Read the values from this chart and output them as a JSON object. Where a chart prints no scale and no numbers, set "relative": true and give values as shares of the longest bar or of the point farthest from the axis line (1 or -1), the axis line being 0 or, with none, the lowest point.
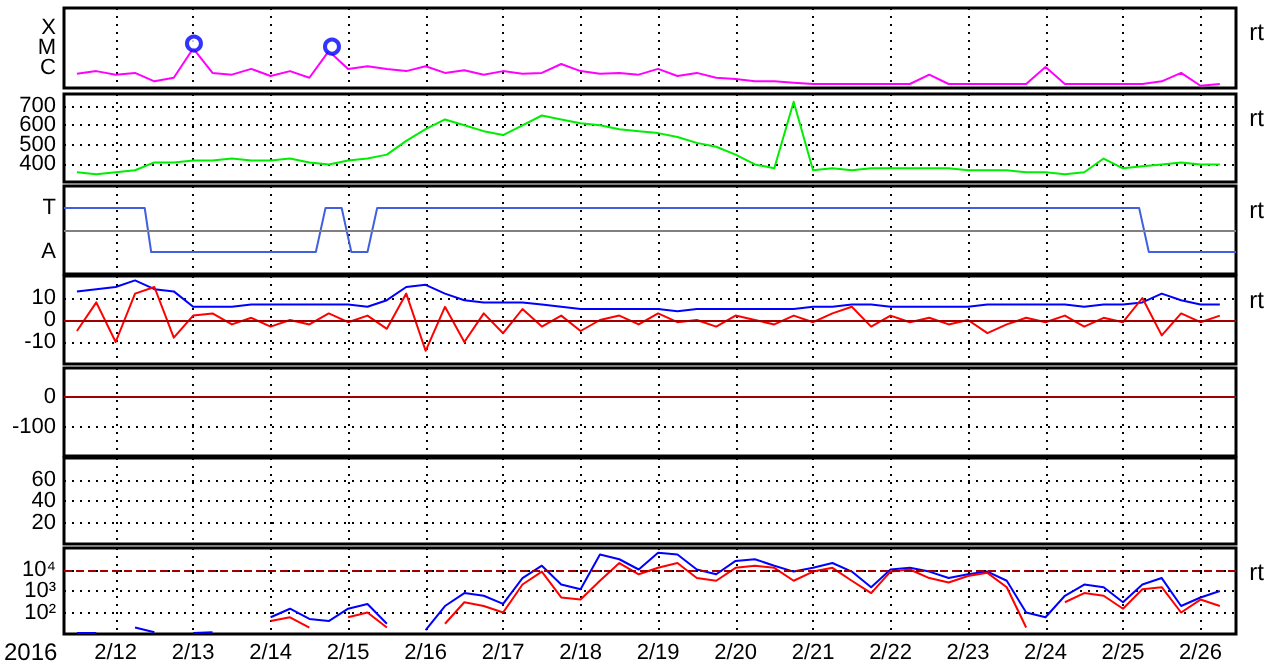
{
  "chart_data": [
    {
      "type": "line",
      "relative": true,
      "xlim": [
        "2016-02-11T08:00",
        "2016-02-26T11:00"
      ],
      "grid": "x",
      "tick_labels": false,
      "marker": "none",
      "annotations": [
        "X",
        "M",
        "C",
        "rt"
      ],
      "xticks": [
        {
          "value": "2016-02-12",
          "label": null
        },
        {
          "value": "2016-02-13",
          "label": null
        },
        {
          "value": "2016-02-14",
          "label": null
        },
        {
          "value": "2016-02-15",
          "label": null
        },
        {
          "value": "2016-02-16",
          "label": null
        },
        {
          "value": "2016-02-17",
          "label": null
        },
        {
          "value": "2016-02-18",
          "label": null
        },
        {
          "value": "2016-02-19",
          "label": null
        },
        {
          "value": "2016-02-20",
          "label": null
        },
        {
          "value": "2016-02-21",
          "label": null
        },
        {
          "value": "2016-02-22",
          "label": null
        },
        {
          "value": "2016-02-23",
          "label": null
        },
        {
          "value": "2016-02-24",
          "label": null
        },
        {
          "value": "2016-02-25",
          "label": null
        },
        {
          "value": "2016-02-26",
          "label": null
        }
      ],
      "x": [
        "2016-02-11T12:00",
        "2016-02-11T18:00",
        "2016-02-12T00:00",
        "2016-02-12T06:00",
        "2016-02-12T12:00",
        "2016-02-12T18:00",
        "2016-02-13T00:00",
        "2016-02-13T06:00",
        "2016-02-13T12:00",
        "2016-02-13T18:00",
        "2016-02-14T00:00",
        "2016-02-14T06:00",
        "2016-02-14T12:00",
        "2016-02-14T18:00",
        "2016-02-15T00:00",
        "2016-02-15T06:00",
        "2016-02-15T12:00",
        "2016-02-15T18:00",
        "2016-02-16T00:00",
        "2016-02-16T06:00",
        "2016-02-16T12:00",
        "2016-02-16T18:00",
        "2016-02-17T00:00",
        "2016-02-17T06:00",
        "2016-02-17T12:00",
        "2016-02-17T18:00",
        "2016-02-18T00:00",
        "2016-02-18T06:00",
        "2016-02-18T12:00",
        "2016-02-18T18:00",
        "2016-02-19T00:00",
        "2016-02-19T06:00",
        "2016-02-19T12:00",
        "2016-02-19T18:00",
        "2016-02-20T00:00",
        "2016-02-20T06:00",
        "2016-02-20T12:00",
        "2016-02-20T18:00",
        "2016-02-21T00:00",
        "2016-02-21T06:00",
        "2016-02-21T12:00",
        "2016-02-21T18:00",
        "2016-02-22T00:00",
        "2016-02-22T06:00",
        "2016-02-22T12:00",
        "2016-02-22T18:00",
        "2016-02-23T00:00",
        "2016-02-23T06:00",
        "2016-02-23T12:00",
        "2016-02-23T18:00",
        "2016-02-24T00:00",
        "2016-02-24T06:00",
        "2016-02-24T12:00",
        "2016-02-24T18:00",
        "2016-02-25T00:00",
        "2016-02-25T06:00",
        "2016-02-25T12:00",
        "2016-02-25T18:00",
        "2016-02-26T00:00",
        "2016-02-26T06:00"
      ],
      "series": [
        {
          "color": "#ff00ff",
          "values": [
            0.32,
            0.38,
            0.3,
            0.34,
            0.15,
            0.23,
            0.89,
            0.34,
            0.3,
            0.43,
            0.27,
            0.38,
            0.23,
            0.83,
            0.43,
            0.49,
            0.43,
            0.38,
            0.49,
            0.34,
            0.4,
            0.3,
            0.38,
            0.32,
            0.34,
            0.54,
            0.38,
            0.32,
            0.34,
            0.3,
            0.43,
            0.27,
            0.34,
            0.23,
            0.2,
            0.15,
            0.15,
            0.12,
            0.09,
            0.09,
            0.09,
            0.09,
            0.09,
            0.09,
            0.3,
            0.09,
            0.09,
            0.09,
            0.09,
            0.09,
            0.47,
            0.09,
            0.09,
            0.09,
            0.09,
            0.09,
            0.15,
            0.34,
            0.05,
            0.09
          ]
        },
        {
          "type": "scatter",
          "marker": "circle",
          "color": "#0000ff",
          "x": [
            "2016-02-13T00:15",
            "2016-02-14T19:00"
          ],
          "values": [
            1,
            0.93
          ]
        }
      ]
    },
    {
      "type": "line",
      "xlim": [
        "2016-02-11T08:00",
        "2016-02-26T11:00"
      ],
      "ylim": [
        310,
        760
      ],
      "grid": true,
      "tick_labels": "y",
      "marker": "none",
      "annotations": [
        "rt"
      ],
      "xticks": [
        {
          "value": "2016-02-12",
          "label": null
        },
        {
          "value": "2016-02-13",
          "label": null
        },
        {
          "value": "2016-02-14",
          "label": null
        },
        {
          "value": "2016-02-15",
          "label": null
        },
        {
          "value": "2016-02-16",
          "label": null
        },
        {
          "value": "2016-02-17",
          "label": null
        },
        {
          "value": "2016-02-18",
          "label": null
        },
        {
          "value": "2016-02-19",
          "label": null
        },
        {
          "value": "2016-02-20",
          "label": null
        },
        {
          "value": "2016-02-21",
          "label": null
        },
        {
          "value": "2016-02-22",
          "label": null
        },
        {
          "value": "2016-02-23",
          "label": null
        },
        {
          "value": "2016-02-24",
          "label": null
        },
        {
          "value": "2016-02-25",
          "label": null
        },
        {
          "value": "2016-02-26",
          "label": null
        }
      ],
      "yticks": [
        400,
        500,
        600,
        700
      ],
      "x": [
        "2016-02-11T12:00",
        "2016-02-11T18:00",
        "2016-02-12T00:00",
        "2016-02-12T06:00",
        "2016-02-12T12:00",
        "2016-02-12T18:00",
        "2016-02-13T00:00",
        "2016-02-13T06:00",
        "2016-02-13T12:00",
        "2016-02-13T18:00",
        "2016-02-14T00:00",
        "2016-02-14T06:00",
        "2016-02-14T12:00",
        "2016-02-14T18:00",
        "2016-02-15T00:00",
        "2016-02-15T06:00",
        "2016-02-15T12:00",
        "2016-02-15T18:00",
        "2016-02-16T00:00",
        "2016-02-16T06:00",
        "2016-02-16T12:00",
        "2016-02-16T18:00",
        "2016-02-17T00:00",
        "2016-02-17T06:00",
        "2016-02-17T12:00",
        "2016-02-17T18:00",
        "2016-02-18T00:00",
        "2016-02-18T06:00",
        "2016-02-18T12:00",
        "2016-02-18T18:00",
        "2016-02-19T00:00",
        "2016-02-19T06:00",
        "2016-02-19T12:00",
        "2016-02-19T18:00",
        "2016-02-20T00:00",
        "2016-02-20T06:00",
        "2016-02-20T12:00",
        "2016-02-20T18:00",
        "2016-02-21T00:00",
        "2016-02-21T06:00",
        "2016-02-21T12:00",
        "2016-02-21T18:00",
        "2016-02-22T00:00",
        "2016-02-22T06:00",
        "2016-02-22T12:00",
        "2016-02-22T18:00",
        "2016-02-23T00:00",
        "2016-02-23T06:00",
        "2016-02-23T12:00",
        "2016-02-23T18:00",
        "2016-02-24T00:00",
        "2016-02-24T06:00",
        "2016-02-24T12:00",
        "2016-02-24T18:00",
        "2016-02-25T00:00",
        "2016-02-25T06:00",
        "2016-02-25T12:00",
        "2016-02-25T18:00",
        "2016-02-26T00:00",
        "2016-02-26T06:00"
      ],
      "series": [
        {
          "color": "#00ee00",
          "values": [
            360,
            350,
            360,
            370,
            410,
            410,
            420,
            420,
            430,
            420,
            420,
            430,
            410,
            400,
            420,
            430,
            450,
            520,
            580,
            630,
            600,
            570,
            550,
            600,
            650,
            630,
            610,
            600,
            580,
            570,
            560,
            540,
            510,
            490,
            450,
            400,
            380,
            720,
            370,
            380,
            370,
            380,
            380,
            380,
            380,
            380,
            370,
            370,
            370,
            360,
            360,
            350,
            360,
            430,
            380,
            390,
            400,
            410,
            400,
            400
          ]
        }
      ]
    },
    {
      "type": "line",
      "relative": true,
      "xlim": [
        "2016-02-11T08:00",
        "2016-02-26T11:00"
      ],
      "grid": "x",
      "marker": "none",
      "tick_labels": false,
      "annotations": [
        "T",
        "A",
        "rt"
      ],
      "xticks": [
        {
          "value": "2016-02-12",
          "label": null
        },
        {
          "value": "2016-02-13",
          "label": null
        },
        {
          "value": "2016-02-14",
          "label": null
        },
        {
          "value": "2016-02-15",
          "label": null
        },
        {
          "value": "2016-02-16",
          "label": null
        },
        {
          "value": "2016-02-17",
          "label": null
        },
        {
          "value": "2016-02-18",
          "label": null
        },
        {
          "value": "2016-02-19",
          "label": null
        },
        {
          "value": "2016-02-20",
          "label": null
        },
        {
          "value": "2016-02-21",
          "label": null
        },
        {
          "value": "2016-02-22",
          "label": null
        },
        {
          "value": "2016-02-23",
          "label": null
        },
        {
          "value": "2016-02-24",
          "label": null
        },
        {
          "value": "2016-02-25",
          "label": null
        },
        {
          "value": "2016-02-26",
          "label": null
        }
      ],
      "ref_lines": [
        {
          "axis": "y",
          "value": 0,
          "color": "#808080"
        }
      ],
      "series": [
        {
          "color": "#4060e0",
          "x": [
            "2016-02-11T08:00",
            "2016-02-12T09:00",
            "2016-02-12T11:00",
            "2016-02-14T14:00",
            "2016-02-14T17:00",
            "2016-02-14T22:00",
            "2016-02-15T01:00",
            "2016-02-15T06:00",
            "2016-02-15T09:00",
            "2016-02-25T05:00",
            "2016-02-25T08:00",
            "2016-02-26T11:00"
          ],
          "values": [
            1,
            1,
            -1,
            -1,
            1,
            1,
            -1,
            -1,
            1,
            1,
            -1,
            -1
          ]
        }
      ]
    },
    {
      "type": "line",
      "xlim": [
        "2016-02-11T08:00",
        "2016-02-26T11:00"
      ],
      "ylim": [
        -20,
        20
      ],
      "grid": true,
      "tick_labels": "y",
      "marker": "none",
      "annotations": [
        "rt"
      ],
      "xticks": [
        {
          "value": "2016-02-12",
          "label": null
        },
        {
          "value": "2016-02-13",
          "label": null
        },
        {
          "value": "2016-02-14",
          "label": null
        },
        {
          "value": "2016-02-15",
          "label": null
        },
        {
          "value": "2016-02-16",
          "label": null
        },
        {
          "value": "2016-02-17",
          "label": null
        },
        {
          "value": "2016-02-18",
          "label": null
        },
        {
          "value": "2016-02-19",
          "label": null
        },
        {
          "value": "2016-02-20",
          "label": null
        },
        {
          "value": "2016-02-21",
          "label": null
        },
        {
          "value": "2016-02-22",
          "label": null
        },
        {
          "value": "2016-02-23",
          "label": null
        },
        {
          "value": "2016-02-24",
          "label": null
        },
        {
          "value": "2016-02-25",
          "label": null
        },
        {
          "value": "2016-02-26",
          "label": null
        }
      ],
      "yticks": [
        -10,
        0,
        10
      ],
      "ref_lines": [
        {
          "axis": "y",
          "value": 0,
          "color": "#a00000"
        }
      ],
      "x": [
        "2016-02-11T12:00",
        "2016-02-11T18:00",
        "2016-02-12T00:00",
        "2016-02-12T06:00",
        "2016-02-12T12:00",
        "2016-02-12T18:00",
        "2016-02-13T00:00",
        "2016-02-13T06:00",
        "2016-02-13T12:00",
        "2016-02-13T18:00",
        "2016-02-14T00:00",
        "2016-02-14T06:00",
        "2016-02-14T12:00",
        "2016-02-14T18:00",
        "2016-02-15T00:00",
        "2016-02-15T06:00",
        "2016-02-15T12:00",
        "2016-02-15T18:00",
        "2016-02-16T00:00",
        "2016-02-16T06:00",
        "2016-02-16T12:00",
        "2016-02-16T18:00",
        "2016-02-17T00:00",
        "2016-02-17T06:00",
        "2016-02-17T12:00",
        "2016-02-17T18:00",
        "2016-02-18T00:00",
        "2016-02-18T06:00",
        "2016-02-18T12:00",
        "2016-02-18T18:00",
        "2016-02-19T00:00",
        "2016-02-19T06:00",
        "2016-02-19T12:00",
        "2016-02-19T18:00",
        "2016-02-20T00:00",
        "2016-02-20T06:00",
        "2016-02-20T12:00",
        "2016-02-20T18:00",
        "2016-02-21T00:00",
        "2016-02-21T06:00",
        "2016-02-21T12:00",
        "2016-02-21T18:00",
        "2016-02-22T00:00",
        "2016-02-22T06:00",
        "2016-02-22T12:00",
        "2016-02-22T18:00",
        "2016-02-23T00:00",
        "2016-02-23T06:00",
        "2016-02-23T12:00",
        "2016-02-23T18:00",
        "2016-02-24T00:00",
        "2016-02-24T06:00",
        "2016-02-24T12:00",
        "2016-02-24T18:00",
        "2016-02-25T00:00",
        "2016-02-25T06:00",
        "2016-02-25T12:00",
        "2016-02-25T18:00",
        "2016-02-26T00:00",
        "2016-02-26T06:00"
      ],
      "series": [
        {
          "color": "#0000ff",
          "values": [
            13,
            14,
            15,
            18,
            14,
            13,
            6,
            6,
            6,
            7,
            7,
            7,
            7,
            7,
            7,
            6,
            9,
            15,
            16,
            12,
            9,
            8,
            8,
            8,
            7,
            6,
            5,
            5,
            5,
            5,
            5,
            4,
            5,
            5,
            5,
            5,
            5,
            5,
            6,
            6,
            7,
            7,
            6,
            6,
            6,
            6,
            6,
            7,
            7,
            7,
            7,
            7,
            6,
            7,
            7,
            8,
            12,
            9,
            7,
            7
          ]
        },
        {
          "color": "#ff0000",
          "values": [
            -5,
            8,
            -10,
            12,
            15,
            -8,
            2,
            3,
            -2,
            1,
            -3,
            0,
            -2,
            3,
            -1,
            2,
            -4,
            12,
            -14,
            6,
            -10,
            3,
            -6,
            5,
            -3,
            2,
            -5,
            0,
            2,
            -2,
            3,
            -1,
            0,
            -3,
            2,
            0,
            -2,
            2,
            -1,
            3,
            6,
            -3,
            2,
            -1,
            1,
            -2,
            0,
            -6,
            -2,
            1,
            -1,
            2,
            -3,
            1,
            -1,
            10,
            -7,
            3,
            -1,
            2
          ]
        }
      ]
    },
    {
      "type": "line",
      "xlim": [
        "2016-02-11T08:00",
        "2016-02-26T11:00"
      ],
      "ylim": [
        -200,
        100
      ],
      "grid": true,
      "tick_labels": "y",
      "xticks": [
        {
          "value": "2016-02-12",
          "label": null
        },
        {
          "value": "2016-02-13",
          "label": null
        },
        {
          "value": "2016-02-14",
          "label": null
        },
        {
          "value": "2016-02-15",
          "label": null
        },
        {
          "value": "2016-02-16",
          "label": null
        },
        {
          "value": "2016-02-17",
          "label": null
        },
        {
          "value": "2016-02-18",
          "label": null
        },
        {
          "value": "2016-02-19",
          "label": null
        },
        {
          "value": "2016-02-20",
          "label": null
        },
        {
          "value": "2016-02-21",
          "label": null
        },
        {
          "value": "2016-02-22",
          "label": null
        },
        {
          "value": "2016-02-23",
          "label": null
        },
        {
          "value": "2016-02-24",
          "label": null
        },
        {
          "value": "2016-02-25",
          "label": null
        },
        {
          "value": "2016-02-26",
          "label": null
        }
      ],
      "yticks": [
        -100,
        0
      ],
      "ref_lines": [
        {
          "axis": "y",
          "value": 0,
          "color": "#a00000"
        }
      ]
    },
    {
      "type": "line",
      "xlim": [
        "2016-02-11T08:00",
        "2016-02-26T11:00"
      ],
      "ylim": [
        0,
        80
      ],
      "grid": true,
      "tick_labels": "y",
      "xticks": [
        {
          "value": "2016-02-12",
          "label": null
        },
        {
          "value": "2016-02-13",
          "label": null
        },
        {
          "value": "2016-02-14",
          "label": null
        },
        {
          "value": "2016-02-15",
          "label": null
        },
        {
          "value": "2016-02-16",
          "label": null
        },
        {
          "value": "2016-02-17",
          "label": null
        },
        {
          "value": "2016-02-18",
          "label": null
        },
        {
          "value": "2016-02-19",
          "label": null
        },
        {
          "value": "2016-02-20",
          "label": null
        },
        {
          "value": "2016-02-21",
          "label": null
        },
        {
          "value": "2016-02-22",
          "label": null
        },
        {
          "value": "2016-02-23",
          "label": null
        },
        {
          "value": "2016-02-24",
          "label": null
        },
        {
          "value": "2016-02-25",
          "label": null
        },
        {
          "value": "2016-02-26",
          "label": null
        }
      ],
      "yticks": [
        20,
        40,
        60
      ]
    },
    {
      "type": "line",
      "xlim": [
        "2016-02-11T08:00",
        "2016-02-26T11:00"
      ],
      "ylim": [
        10,
        100000
      ],
      "log": true,
      "grid": true,
      "marker": "none",
      "annotations": [
        "rt"
      ],
      "xlabel": "2016",
      "xticks": [
        {
          "value": "2016-02-12",
          "label": "2/12"
        },
        {
          "value": "2016-02-13",
          "label": "2/13"
        },
        {
          "value": "2016-02-14",
          "label": "2/14"
        },
        {
          "value": "2016-02-15",
          "label": "2/15"
        },
        {
          "value": "2016-02-16",
          "label": "2/16"
        },
        {
          "value": "2016-02-17",
          "label": "2/17"
        },
        {
          "value": "2016-02-18",
          "label": "2/18"
        },
        {
          "value": "2016-02-19",
          "label": "2/19"
        },
        {
          "value": "2016-02-20",
          "label": "2/20"
        },
        {
          "value": "2016-02-21",
          "label": "2/21"
        },
        {
          "value": "2016-02-22",
          "label": "2/22"
        },
        {
          "value": "2016-02-23",
          "label": "2/23"
        },
        {
          "value": "2016-02-24",
          "label": "2/24"
        },
        {
          "value": "2016-02-25",
          "label": "2/25"
        },
        {
          "value": "2016-02-26",
          "label": "2/26"
        }
      ],
      "yticks": [
        {
          "value": 100,
          "label": "10²"
        },
        {
          "value": 1000,
          "label": "10³"
        },
        {
          "value": 10000,
          "label": "10⁴"
        }
      ],
      "ref_lines": [
        {
          "axis": "y",
          "value": 10000,
          "color": "#a00000",
          "line_style": "dashed"
        }
      ],
      "x": [
        "2016-02-11T12:00",
        "2016-02-11T18:00",
        "2016-02-12T00:00",
        "2016-02-12T06:00",
        "2016-02-12T12:00",
        "2016-02-12T18:00",
        "2016-02-13T00:00",
        "2016-02-13T06:00",
        "2016-02-13T12:00",
        "2016-02-13T18:00",
        "2016-02-14T00:00",
        "2016-02-14T06:00",
        "2016-02-14T12:00",
        "2016-02-14T18:00",
        "2016-02-15T00:00",
        "2016-02-15T06:00",
        "2016-02-15T12:00",
        "2016-02-15T18:00",
        "2016-02-16T00:00",
        "2016-02-16T06:00",
        "2016-02-16T12:00",
        "2016-02-16T18:00",
        "2016-02-17T00:00",
        "2016-02-17T06:00",
        "2016-02-17T12:00",
        "2016-02-17T18:00",
        "2016-02-18T00:00",
        "2016-02-18T06:00",
        "2016-02-18T12:00",
        "2016-02-18T18:00",
        "2016-02-19T00:00",
        "2016-02-19T06:00",
        "2016-02-19T12:00",
        "2016-02-19T18:00",
        "2016-02-20T00:00",
        "2016-02-20T06:00",
        "2016-02-20T12:00",
        "2016-02-20T18:00",
        "2016-02-21T00:00",
        "2016-02-21T06:00",
        "2016-02-21T12:00",
        "2016-02-21T18:00",
        "2016-02-22T00:00",
        "2016-02-22T06:00",
        "2016-02-22T12:00",
        "2016-02-22T18:00",
        "2016-02-23T00:00",
        "2016-02-23T06:00",
        "2016-02-23T12:00",
        "2016-02-23T18:00",
        "2016-02-24T00:00",
        "2016-02-24T06:00",
        "2016-02-24T12:00",
        "2016-02-24T18:00",
        "2016-02-25T00:00",
        "2016-02-25T06:00",
        "2016-02-25T12:00",
        "2016-02-25T18:00",
        "2016-02-26T00:00",
        "2016-02-26T06:00"
      ],
      "series": [
        {
          "color": "#0000ff",
          "values": [
            11,
            11,
            null,
            20,
            12,
            null,
            11,
            12,
            null,
            null,
            60,
            150,
            50,
            40,
            150,
            250,
            30,
            null,
            15,
            200,
            800,
            600,
            250,
            4000,
            15000,
            2000,
            1200,
            50000,
            30000,
            10000,
            60000,
            50000,
            10000,
            6000,
            25000,
            30000,
            15000,
            8000,
            12000,
            20000,
            8000,
            1500,
            10000,
            12000,
            8000,
            4000,
            6000,
            8000,
            3000,
            100,
            60,
            600,
            2000,
            1500,
            300,
            2000,
            4000,
            200,
            500,
            1000
          ]
        },
        {
          "color": "#ff0000",
          "values": [
            null,
            null,
            null,
            null,
            null,
            null,
            null,
            null,
            null,
            null,
            40,
            60,
            20,
            null,
            60,
            100,
            20,
            null,
            null,
            30,
            300,
            200,
            100,
            2000,
            8000,
            500,
            400,
            3000,
            20000,
            6000,
            12000,
            20000,
            4000,
            3000,
            12000,
            15000,
            12000,
            3000,
            8000,
            12000,
            3000,
            800,
            8000,
            10000,
            4000,
            2500,
            5000,
            7000,
            1500,
            20,
            null,
            300,
            800,
            600,
            150,
            1200,
            1500,
            100,
            400,
            200
          ]
        }
      ]
    }
  ]
}
